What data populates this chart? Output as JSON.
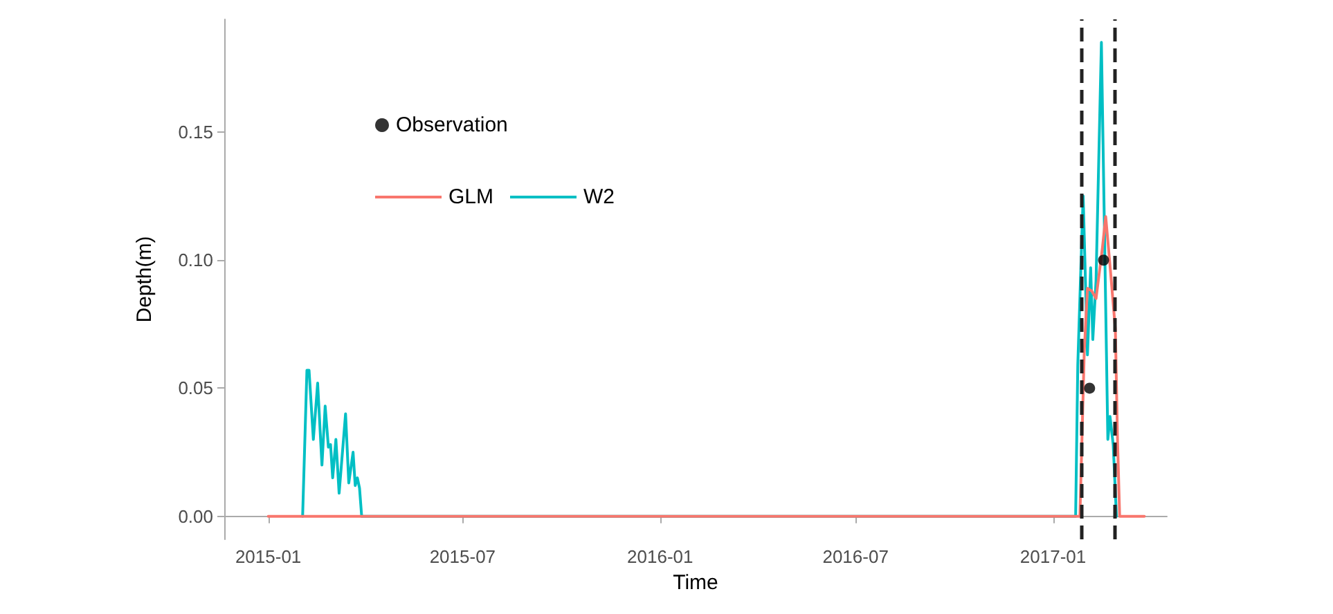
{
  "chart_data": {
    "type": "line",
    "xlabel": "Time",
    "ylabel": "Depth(m)",
    "xlim": [
      "2014-11-21",
      "2017-04-17"
    ],
    "xticks": [
      {
        "value": "2015-01-01",
        "label": "2015-01"
      },
      {
        "value": "2015-07-01",
        "label": "2015-07"
      },
      {
        "value": "2016-01-01",
        "label": "2016-01"
      },
      {
        "value": "2016-07-01",
        "label": "2016-07"
      },
      {
        "value": "2017-01-01",
        "label": "2017-01"
      }
    ],
    "ylim": [
      -0.009,
      0.194
    ],
    "yticks": [
      {
        "value": 0,
        "label": "0.00"
      },
      {
        "value": 0.05,
        "label": "0.05"
      },
      {
        "value": 0.1,
        "label": "0.10"
      },
      {
        "value": 0.15,
        "label": "0.15"
      }
    ],
    "legend": "top left",
    "series": [
      {
        "name": "W2",
        "color": "#00bfc4",
        "x": [
          "2015-02-02",
          "2015-02-06",
          "2015-02-08",
          "2015-02-12",
          "2015-02-16",
          "2015-02-20",
          "2015-02-23",
          "2015-02-26",
          "2015-02-28",
          "2015-03-02",
          "2015-03-05",
          "2015-03-08",
          "2015-03-14",
          "2015-03-17",
          "2015-03-21",
          "2015-03-23",
          "2015-03-25",
          "2015-03-27",
          "2015-03-29",
          "2017-01-22",
          "2017-01-24",
          "2017-01-29",
          "2017-02-02",
          "2017-02-05",
          "2017-02-07",
          "2017-02-10",
          "2017-02-15",
          "2017-02-21",
          "2017-02-23",
          "2017-02-26",
          "2017-03-01"
        ],
        "values": [
          0,
          0.057,
          0.057,
          0.03,
          0.052,
          0.02,
          0.043,
          0.027,
          0.028,
          0.015,
          0.03,
          0.009,
          0.04,
          0.013,
          0.025,
          0.012,
          0.015,
          0.011,
          0,
          0,
          0.059,
          0.125,
          0.063,
          0.097,
          0.069,
          0.092,
          0.185,
          0.03,
          0.039,
          0.028,
          0
        ]
      },
      {
        "name": "GLM",
        "color": "#f8766d",
        "x": [
          "2015-01-01",
          "2017-01-26",
          "2017-01-30",
          "2017-02-02",
          "2017-02-06",
          "2017-02-10",
          "2017-02-16",
          "2017-02-19",
          "2017-02-23",
          "2017-02-28",
          "2017-03-02",
          "2017-03-04",
          "2017-03-27"
        ],
        "values": [
          0,
          0,
          0.064,
          0.089,
          0.088,
          0.085,
          0.105,
          0.117,
          0.098,
          0.073,
          0.03,
          0,
          0
        ]
      },
      {
        "name": "Observation",
        "type": "scatter",
        "color": "#000000",
        "x": [
          "2017-02-04",
          "2017-02-17"
        ],
        "values": [
          0.05,
          0.1
        ]
      }
    ],
    "ref_lines": [
      {
        "axis": "x",
        "value": "2017-01-28",
        "color": "#222222",
        "line_style": "dashed"
      },
      {
        "axis": "x",
        "value": "2017-02-27",
        "color": "#222222",
        "line_style": "dashed"
      }
    ]
  }
}
